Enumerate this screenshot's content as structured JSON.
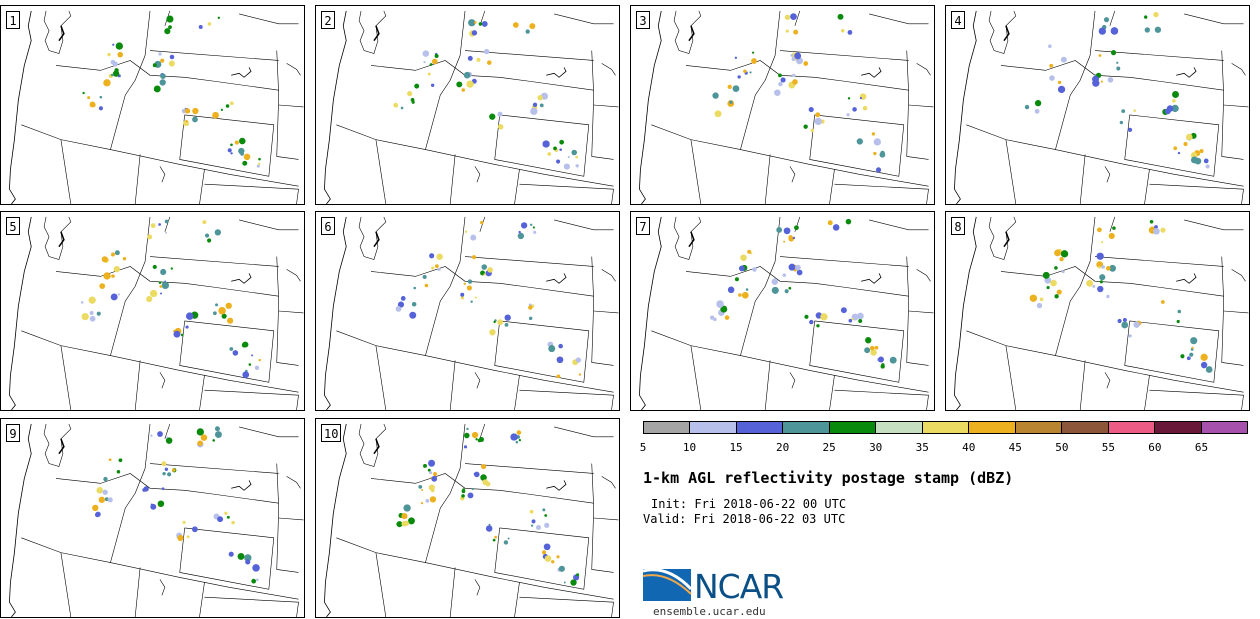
{
  "panels": [
    {
      "label": "1"
    },
    {
      "label": "2"
    },
    {
      "label": "3"
    },
    {
      "label": "4"
    },
    {
      "label": "5"
    },
    {
      "label": "6"
    },
    {
      "label": "7"
    },
    {
      "label": "8"
    },
    {
      "label": "9"
    },
    {
      "label": "10"
    }
  ],
  "colorbar": {
    "colors": [
      "#a5a5a5",
      "#b7c0ea",
      "#5562d8",
      "#4e9599",
      "#0a8a0d",
      "#c6dfc0",
      "#ecdb62",
      "#edb01e",
      "#b98530",
      "#8b5639",
      "#ed5c84",
      "#6a1839",
      "#a652ad"
    ],
    "ticks": [
      "5",
      "10",
      "15",
      "20",
      "25",
      "30",
      "35",
      "40",
      "45",
      "50",
      "55",
      "60",
      "65"
    ]
  },
  "title": "1-km AGL reflectivity postage stamp (dBZ)",
  "init": "Init: Fri 2018-06-22 00 UTC",
  "valid": "Valid: Fri 2018-06-22 03 UTC",
  "logo": {
    "text": "NCAR",
    "site": "ensemble.ucar.edu"
  }
}
